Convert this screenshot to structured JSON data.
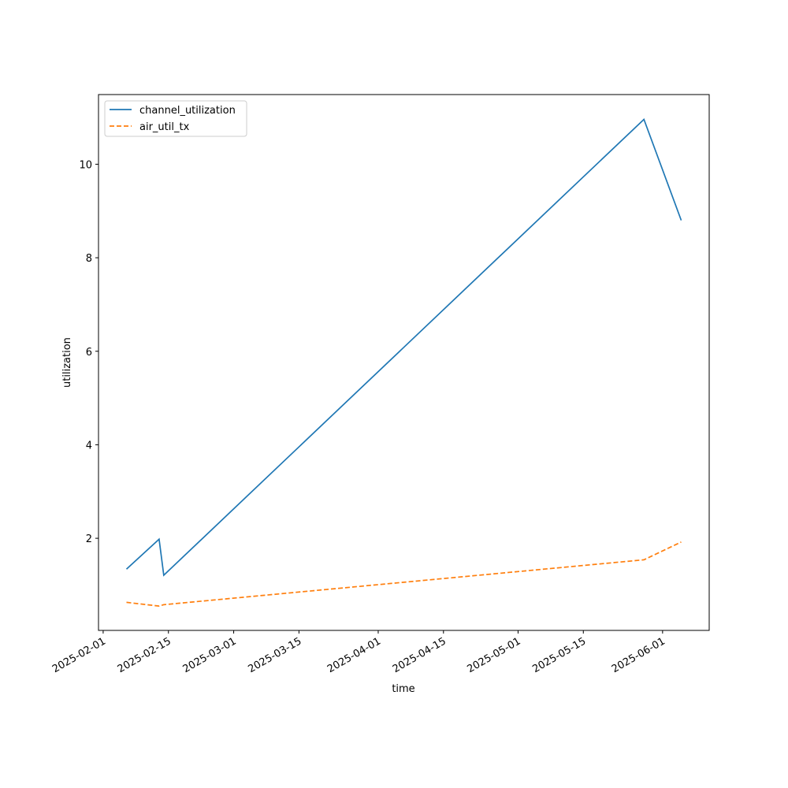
{
  "chart_data": {
    "type": "line",
    "xlabel": "time",
    "ylabel": "utilization",
    "x": [
      "2025-02-06",
      "2025-02-13",
      "2025-02-14",
      "2025-05-28",
      "2025-06-05"
    ],
    "series": [
      {
        "name": "channel_utilization",
        "color": "#1f77b4",
        "linestyle": "solid",
        "values": [
          1.34,
          1.98,
          1.21,
          10.96,
          8.8
        ]
      },
      {
        "name": "air_util_tx",
        "color": "#ff7f0e",
        "linestyle": "dashed",
        "values": [
          0.63,
          0.55,
          0.58,
          1.54,
          1.92
        ]
      }
    ],
    "xlim": [
      "2025-01-31",
      "2025-06-11"
    ],
    "xticks": [
      "2025-02-01",
      "2025-02-15",
      "2025-03-01",
      "2025-03-15",
      "2025-04-01",
      "2025-04-15",
      "2025-05-01",
      "2025-05-15",
      "2025-06-01"
    ],
    "ylim": [
      0.03,
      11.49
    ],
    "yticks": [
      2,
      4,
      6,
      8,
      10
    ],
    "grid": false,
    "legend": "upper left"
  }
}
